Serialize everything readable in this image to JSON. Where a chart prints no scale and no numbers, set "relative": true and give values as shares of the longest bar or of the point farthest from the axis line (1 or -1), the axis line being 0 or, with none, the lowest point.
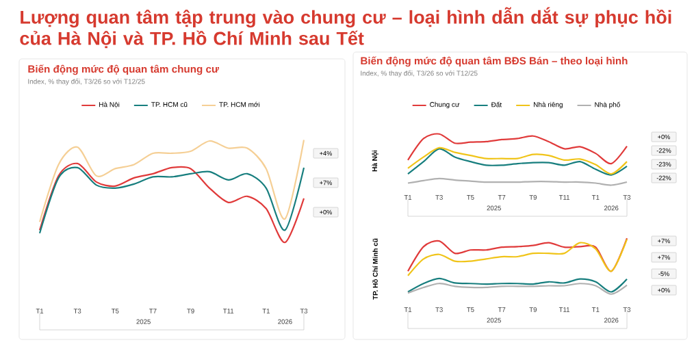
{
  "chart_data": [
    {
      "type": "other",
      "title": "Lượng quan tâm tập trung vào chung cư – loại hình dẫn dắt sự phục hồi của Hà Nội và TP. Hồ Chí Minh sau Tết"
    },
    {
      "type": "line",
      "title": "Biến động mức độ quan tâm chung cư",
      "subtitle": "Index, % thay đổi, T3/26 so với T12/25",
      "relative": true,
      "legend": "top",
      "x": [
        "2025-01",
        "2025-02",
        "2025-03",
        "2025-04",
        "2025-05",
        "2025-06",
        "2025-07",
        "2025-08",
        "2025-09",
        "2025-10",
        "2025-11",
        "2025-12",
        "2026-01",
        "2026-02",
        "2026-03"
      ],
      "xlim": [
        "2025-01",
        "2026-03"
      ],
      "xticks": [
        {
          "value": "2025-01",
          "label": "T1"
        },
        {
          "value": "2025-03",
          "label": "T3"
        },
        {
          "value": "2025-05",
          "label": "T5"
        },
        {
          "value": "2025-07",
          "label": "T7"
        },
        {
          "value": "2025-09",
          "label": "T9"
        },
        {
          "value": "2025-11",
          "label": "T11"
        },
        {
          "value": "2026-01",
          "label": "T1"
        },
        {
          "value": "2026-03",
          "label": "T3"
        }
      ],
      "series": [
        {
          "name": "Hà Nội",
          "color": "#e03a3a",
          "values": [
            0.12,
            0.65,
            0.77,
            0.59,
            0.55,
            0.63,
            0.67,
            0.73,
            0.72,
            0.53,
            0.39,
            0.45,
            0.33,
            0,
            0.43
          ]
        },
        {
          "name": "TP. HCM cũ",
          "color": "#177e7e",
          "values": [
            0.09,
            0.63,
            0.73,
            0.56,
            0.53,
            0.57,
            0.64,
            0.64,
            0.67,
            0.69,
            0.61,
            0.67,
            0.53,
            0.12,
            0.73
          ]
        },
        {
          "name": "TP. HCM mới",
          "color": "#f5cf95",
          "values": [
            0.2,
            0.76,
            0.93,
            0.65,
            0.72,
            0.76,
            0.87,
            0.87,
            0.89,
            0.99,
            0.92,
            0.92,
            0.72,
            0.23,
            1
          ]
        }
      ],
      "annotations": [
        "+4%",
        "+7%",
        "+0%",
        "2025",
        "2026"
      ]
    },
    {
      "type": "line",
      "title": "Biến động mức độ quan tâm BĐS Bán – theo loại hình",
      "subtitle": "Index, % thay đổi, T3/26 so với T12/25",
      "ylabel": "Hà Nội",
      "relative": true,
      "legend": "top",
      "x": [
        "2025-01",
        "2025-02",
        "2025-03",
        "2025-04",
        "2025-05",
        "2025-06",
        "2025-07",
        "2025-08",
        "2025-09",
        "2025-10",
        "2025-11",
        "2025-12",
        "2026-01",
        "2026-02",
        "2026-03"
      ],
      "xlim": [
        "2025-01",
        "2026-03"
      ],
      "xticks": [
        {
          "value": "2025-01",
          "label": "T1"
        },
        {
          "value": "2025-03",
          "label": "T3"
        },
        {
          "value": "2025-05",
          "label": "T5"
        },
        {
          "value": "2025-07",
          "label": "T7"
        },
        {
          "value": "2025-09",
          "label": "T9"
        },
        {
          "value": "2025-11",
          "label": "T11"
        },
        {
          "value": "2026-01",
          "label": "T1"
        },
        {
          "value": "2026-03",
          "label": "T3"
        }
      ],
      "series": [
        {
          "name": "Chung cư",
          "color": "#e03a3a",
          "values": [
            0.49,
            0.91,
            1,
            0.82,
            0.84,
            0.85,
            0.89,
            0.91,
            0.96,
            0.85,
            0.71,
            0.75,
            0.62,
            0.42,
            0.76
          ]
        },
        {
          "name": "Đất",
          "color": "#177e7e",
          "values": [
            0.22,
            0.46,
            0.71,
            0.55,
            0.46,
            0.39,
            0.39,
            0.42,
            0.44,
            0.44,
            0.39,
            0.46,
            0.31,
            0.2,
            0.37
          ]
        },
        {
          "name": "Nhà riêng",
          "color": "#f0c419",
          "values": [
            0.33,
            0.55,
            0.73,
            0.64,
            0.58,
            0.52,
            0.52,
            0.52,
            0.6,
            0.58,
            0.49,
            0.51,
            0.4,
            0.22,
            0.46
          ]
        },
        {
          "name": "Nhà phố",
          "color": "#b0b0b0",
          "values": [
            0.04,
            0.09,
            0.13,
            0.1,
            0.08,
            0.06,
            0.06,
            0.06,
            0.07,
            0.07,
            0.06,
            0.06,
            0.04,
            0,
            0.06
          ]
        }
      ],
      "annotations": [
        "+0%",
        "-22%",
        "-23%",
        "-22%",
        "2025",
        "2026"
      ]
    },
    {
      "type": "line",
      "ylabel": "TP. Hồ Chí Minh cũ",
      "relative": true,
      "x": [
        "2025-01",
        "2025-02",
        "2025-03",
        "2025-04",
        "2025-05",
        "2025-06",
        "2025-07",
        "2025-08",
        "2025-09",
        "2025-10",
        "2025-11",
        "2025-12",
        "2026-01",
        "2026-02",
        "2026-03"
      ],
      "xlim": [
        "2025-01",
        "2026-03"
      ],
      "xticks": [
        {
          "value": "2025-01",
          "label": "T1"
        },
        {
          "value": "2025-03",
          "label": "T3"
        },
        {
          "value": "2025-05",
          "label": "T5"
        },
        {
          "value": "2025-07",
          "label": "T7"
        },
        {
          "value": "2025-09",
          "label": "T9"
        },
        {
          "value": "2025-11",
          "label": "T11"
        },
        {
          "value": "2026-01",
          "label": "T1"
        },
        {
          "value": "2026-03",
          "label": "T3"
        }
      ],
      "series": [
        {
          "color": "#e03a3a",
          "values": [
            0.41,
            0.85,
            0.95,
            0.73,
            0.79,
            0.79,
            0.84,
            0.85,
            0.87,
            0.92,
            0.84,
            0.85,
            0.84,
            0.41,
            1
          ]
        },
        {
          "color": "#f0c419",
          "values": [
            0.33,
            0.63,
            0.71,
            0.59,
            0.59,
            0.63,
            0.67,
            0.67,
            0.73,
            0.73,
            0.73,
            0.92,
            0.81,
            0.41,
            0.98
          ]
        },
        {
          "color": "#177e7e",
          "values": [
            0.04,
            0.19,
            0.28,
            0.2,
            0.19,
            0.18,
            0.19,
            0.19,
            0.18,
            0.22,
            0.2,
            0.27,
            0.22,
            0.04,
            0.27
          ]
        },
        {
          "color": "#b0b0b0",
          "values": [
            0.02,
            0.12,
            0.19,
            0.14,
            0.12,
            0.12,
            0.14,
            0.14,
            0.14,
            0.15,
            0.15,
            0.19,
            0.15,
            0,
            0.16
          ]
        }
      ],
      "annotations": [
        "+7%",
        "+7%",
        "-5%",
        "+0%",
        "2025",
        "2026"
      ]
    }
  ]
}
